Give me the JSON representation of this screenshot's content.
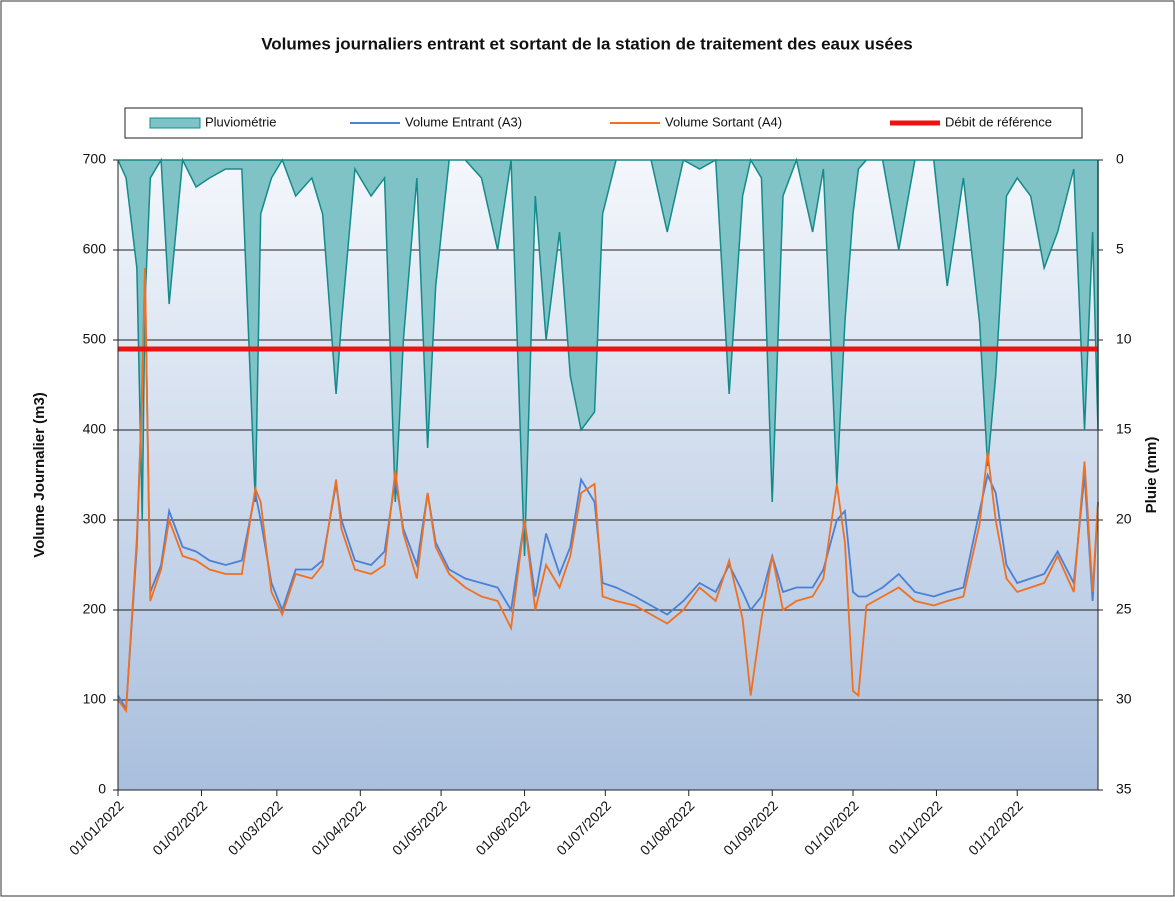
{
  "chart_data": {
    "type": "line",
    "title": "Volumes journaliers entrant et sortant de la station de traitement des eaux usées",
    "y_label": "Volume Journalier (m3)",
    "y2_label": "Pluie (mm)",
    "x": [
      "01/01/2022",
      "04/01/2022",
      "08/01/2022",
      "10/01/2022",
      "11/01/2022",
      "13/01/2022",
      "17/01/2022",
      "20/01/2022",
      "25/01/2022",
      "30/01/2022",
      "04/02/2022",
      "10/02/2022",
      "16/02/2022",
      "21/02/2022",
      "23/02/2022",
      "27/02/2022",
      "03/03/2022",
      "08/03/2022",
      "14/03/2022",
      "18/03/2022",
      "23/03/2022",
      "25/03/2022",
      "30/03/2022",
      "05/04/2022",
      "10/04/2022",
      "14/04/2022",
      "17/04/2022",
      "22/04/2022",
      "26/04/2022",
      "29/04/2022",
      "04/05/2022",
      "10/05/2022",
      "16/05/2022",
      "22/05/2022",
      "27/05/2022",
      "01/06/2022",
      "05/06/2022",
      "09/06/2022",
      "14/06/2022",
      "18/06/2022",
      "22/06/2022",
      "27/06/2022",
      "30/06/2022",
      "05/07/2022",
      "12/07/2022",
      "18/07/2022",
      "24/07/2022",
      "30/07/2022",
      "05/08/2022",
      "11/08/2022",
      "16/08/2022",
      "21/08/2022",
      "24/08/2022",
      "28/08/2022",
      "01/09/2022",
      "05/09/2022",
      "10/09/2022",
      "16/09/2022",
      "20/09/2022",
      "25/09/2022",
      "28/09/2022",
      "01/10/2022",
      "03/10/2022",
      "06/10/2022",
      "12/10/2022",
      "18/10/2022",
      "24/10/2022",
      "31/10/2022",
      "05/11/2022",
      "11/11/2022",
      "17/11/2022",
      "20/11/2022",
      "23/11/2022",
      "27/11/2022",
      "01/12/2022",
      "06/12/2022",
      "11/12/2022",
      "16/12/2022",
      "22/12/2022",
      "26/12/2022",
      "29/12/2022",
      "31/12/2022"
    ],
    "series": [
      {
        "name": "Pluviométrie",
        "type": "area",
        "axis": "y2",
        "color": "#7fc3c6",
        "line_color": "#148a8a",
        "values": [
          0,
          1,
          6,
          20,
          8,
          1,
          0,
          8,
          0,
          1.5,
          1,
          0.5,
          0.5,
          19,
          3,
          1,
          0,
          2,
          1,
          3,
          13,
          9,
          0.5,
          2,
          1,
          19,
          10,
          1,
          16,
          7,
          0,
          0,
          1,
          5,
          0,
          22,
          2,
          10,
          4,
          12,
          15,
          14,
          3,
          0,
          0,
          0,
          4,
          0,
          0.5,
          0,
          13,
          2,
          0,
          1,
          19,
          2,
          0,
          4,
          0.5,
          18,
          9,
          3,
          0.5,
          0,
          0,
          5,
          0,
          0,
          7,
          1,
          9,
          17,
          12,
          2,
          1,
          2,
          6,
          4,
          0.5,
          15,
          4,
          15
        ]
      },
      {
        "name": "Volume Entrant (A3)",
        "color": "#4a80d6",
        "values": [
          105,
          90,
          270,
          450,
          575,
          220,
          250,
          310,
          270,
          265,
          255,
          250,
          255,
          330,
          300,
          230,
          200,
          245,
          245,
          255,
          340,
          300,
          255,
          250,
          265,
          345,
          290,
          250,
          330,
          275,
          245,
          235,
          230,
          225,
          200,
          300,
          215,
          285,
          240,
          270,
          345,
          320,
          230,
          225,
          215,
          205,
          195,
          210,
          230,
          220,
          250,
          220,
          200,
          215,
          260,
          220,
          225,
          225,
          245,
          300,
          310,
          220,
          215,
          215,
          225,
          240,
          220,
          215,
          220,
          225,
          310,
          350,
          330,
          250,
          230,
          235,
          240,
          265,
          230,
          350,
          210,
          320
        ]
      },
      {
        "name": "Volume Sortant (A4)",
        "color": "#f07020",
        "values": [
          100,
          88,
          280,
          440,
          580,
          210,
          245,
          300,
          260,
          255,
          245,
          240,
          240,
          335,
          320,
          220,
          195,
          240,
          235,
          250,
          345,
          290,
          245,
          240,
          250,
          355,
          285,
          235,
          330,
          270,
          240,
          225,
          215,
          210,
          180,
          300,
          200,
          250,
          225,
          260,
          330,
          340,
          215,
          210,
          205,
          195,
          185,
          200,
          225,
          210,
          255,
          190,
          105,
          190,
          260,
          200,
          210,
          215,
          235,
          340,
          275,
          110,
          105,
          205,
          215,
          225,
          210,
          205,
          210,
          215,
          295,
          375,
          300,
          235,
          220,
          225,
          230,
          260,
          220,
          365,
          220,
          320
        ]
      }
    ],
    "reference_lines": [
      {
        "name": "Débit de référence",
        "color": "#ee1111",
        "value": 490
      }
    ],
    "xlim": [
      "01/01/2022",
      "31/12/2022"
    ],
    "xticks": [
      "01/01/2022",
      "01/02/2022",
      "01/03/2022",
      "01/04/2022",
      "01/05/2022",
      "01/06/2022",
      "01/07/2022",
      "01/08/2022",
      "01/09/2022",
      "01/10/2022",
      "01/11/2022",
      "01/12/2022"
    ],
    "ylim": [
      0,
      700
    ],
    "yticks": [
      0,
      100,
      200,
      300,
      400,
      500,
      600,
      700
    ],
    "y2lim": [
      35,
      0
    ],
    "y2ticks": [
      0,
      5,
      10,
      15,
      20,
      25,
      30,
      35
    ],
    "grid": true,
    "legend": "top"
  }
}
